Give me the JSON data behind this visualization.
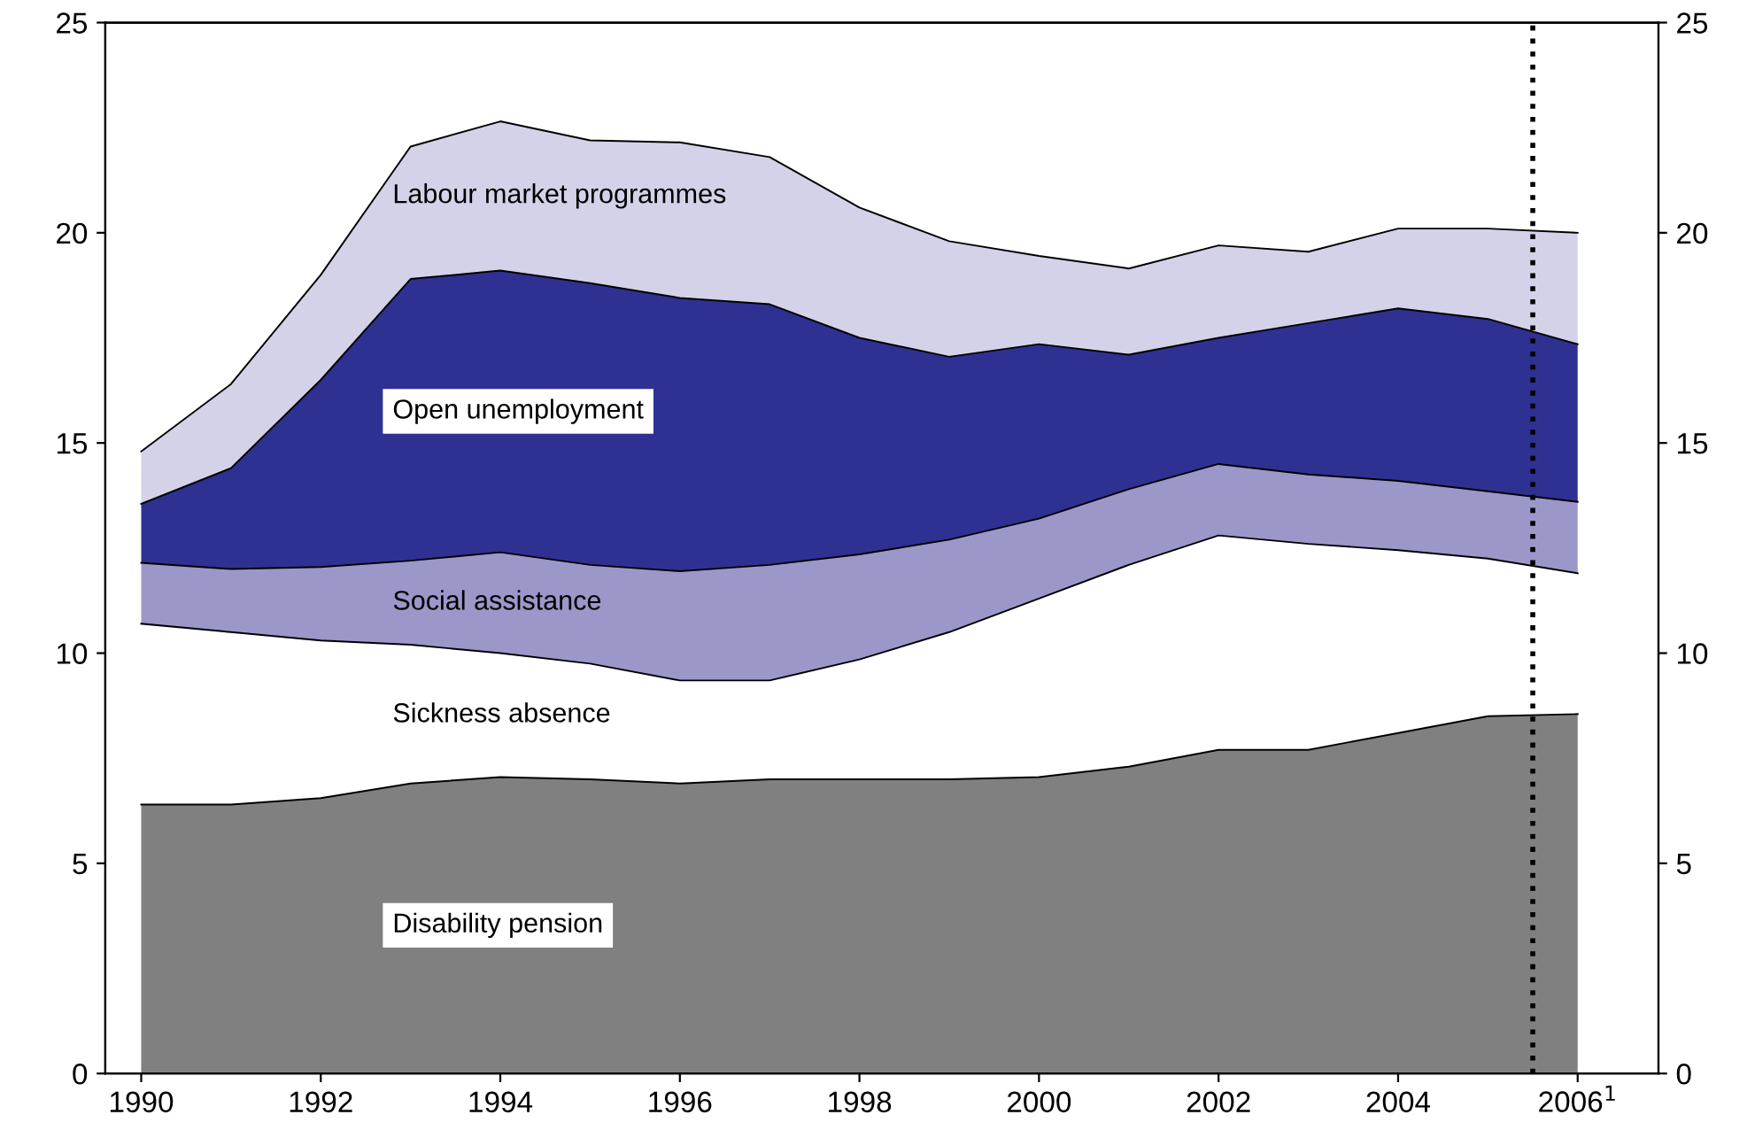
{
  "chart_data": {
    "type": "area",
    "stacked": true,
    "x": [
      1990,
      1991,
      1992,
      1993,
      1994,
      1995,
      1996,
      1997,
      1998,
      1999,
      2000,
      2001,
      2002,
      2003,
      2004,
      2005,
      2006
    ],
    "series": [
      {
        "name": "Disability pension",
        "color": "#808080",
        "values": [
          6.4,
          6.4,
          6.55,
          6.9,
          7.05,
          7.0,
          6.9,
          7.0,
          7.0,
          7.0,
          7.05,
          7.3,
          7.7,
          7.7,
          8.1,
          8.5,
          8.55
        ]
      },
      {
        "name": "Sickness absence",
        "color": "#ffffff",
        "values": [
          4.3,
          4.1,
          3.75,
          3.3,
          2.95,
          2.75,
          2.45,
          2.35,
          2.85,
          3.5,
          4.25,
          4.8,
          5.1,
          4.9,
          4.35,
          3.75,
          3.35
        ]
      },
      {
        "name": "Social assistance",
        "color": "#9c97c9",
        "values": [
          1.45,
          1.5,
          1.75,
          2.0,
          2.4,
          2.35,
          2.6,
          2.75,
          2.5,
          2.2,
          1.9,
          1.8,
          1.7,
          1.65,
          1.65,
          1.6,
          1.7
        ]
      },
      {
        "name": "Open unemployment",
        "color": "#2e3192",
        "values": [
          1.4,
          2.4,
          4.45,
          6.7,
          6.7,
          6.7,
          6.5,
          6.2,
          5.15,
          4.35,
          4.15,
          3.2,
          3.0,
          3.6,
          4.1,
          4.1,
          3.75
        ]
      },
      {
        "name": "Labour market programmes",
        "color": "#d4d2e8",
        "values": [
          1.25,
          2.0,
          2.5,
          3.15,
          3.55,
          3.4,
          3.7,
          3.5,
          3.1,
          2.75,
          2.1,
          2.05,
          2.2,
          1.7,
          1.9,
          2.15,
          2.65
        ]
      }
    ],
    "xlim": [
      1989.6,
      2006.9
    ],
    "xticks": [
      1990,
      1992,
      1994,
      1996,
      1998,
      2000,
      2002,
      2004,
      {
        "value": 2006,
        "label": "2006$^{1}$"
      }
    ],
    "ylim": [
      0,
      25
    ],
    "yticks": [
      0,
      5,
      10,
      15,
      20,
      25
    ],
    "y2lim": [
      0,
      25
    ],
    "y2ticks": [
      0,
      5,
      10,
      15,
      20,
      25
    ],
    "ref_lines": [
      {
        "axis": "x",
        "value": 2005.5,
        "color": "#000000",
        "line_style": "dotted"
      }
    ],
    "grid": false,
    "legend": false
  }
}
